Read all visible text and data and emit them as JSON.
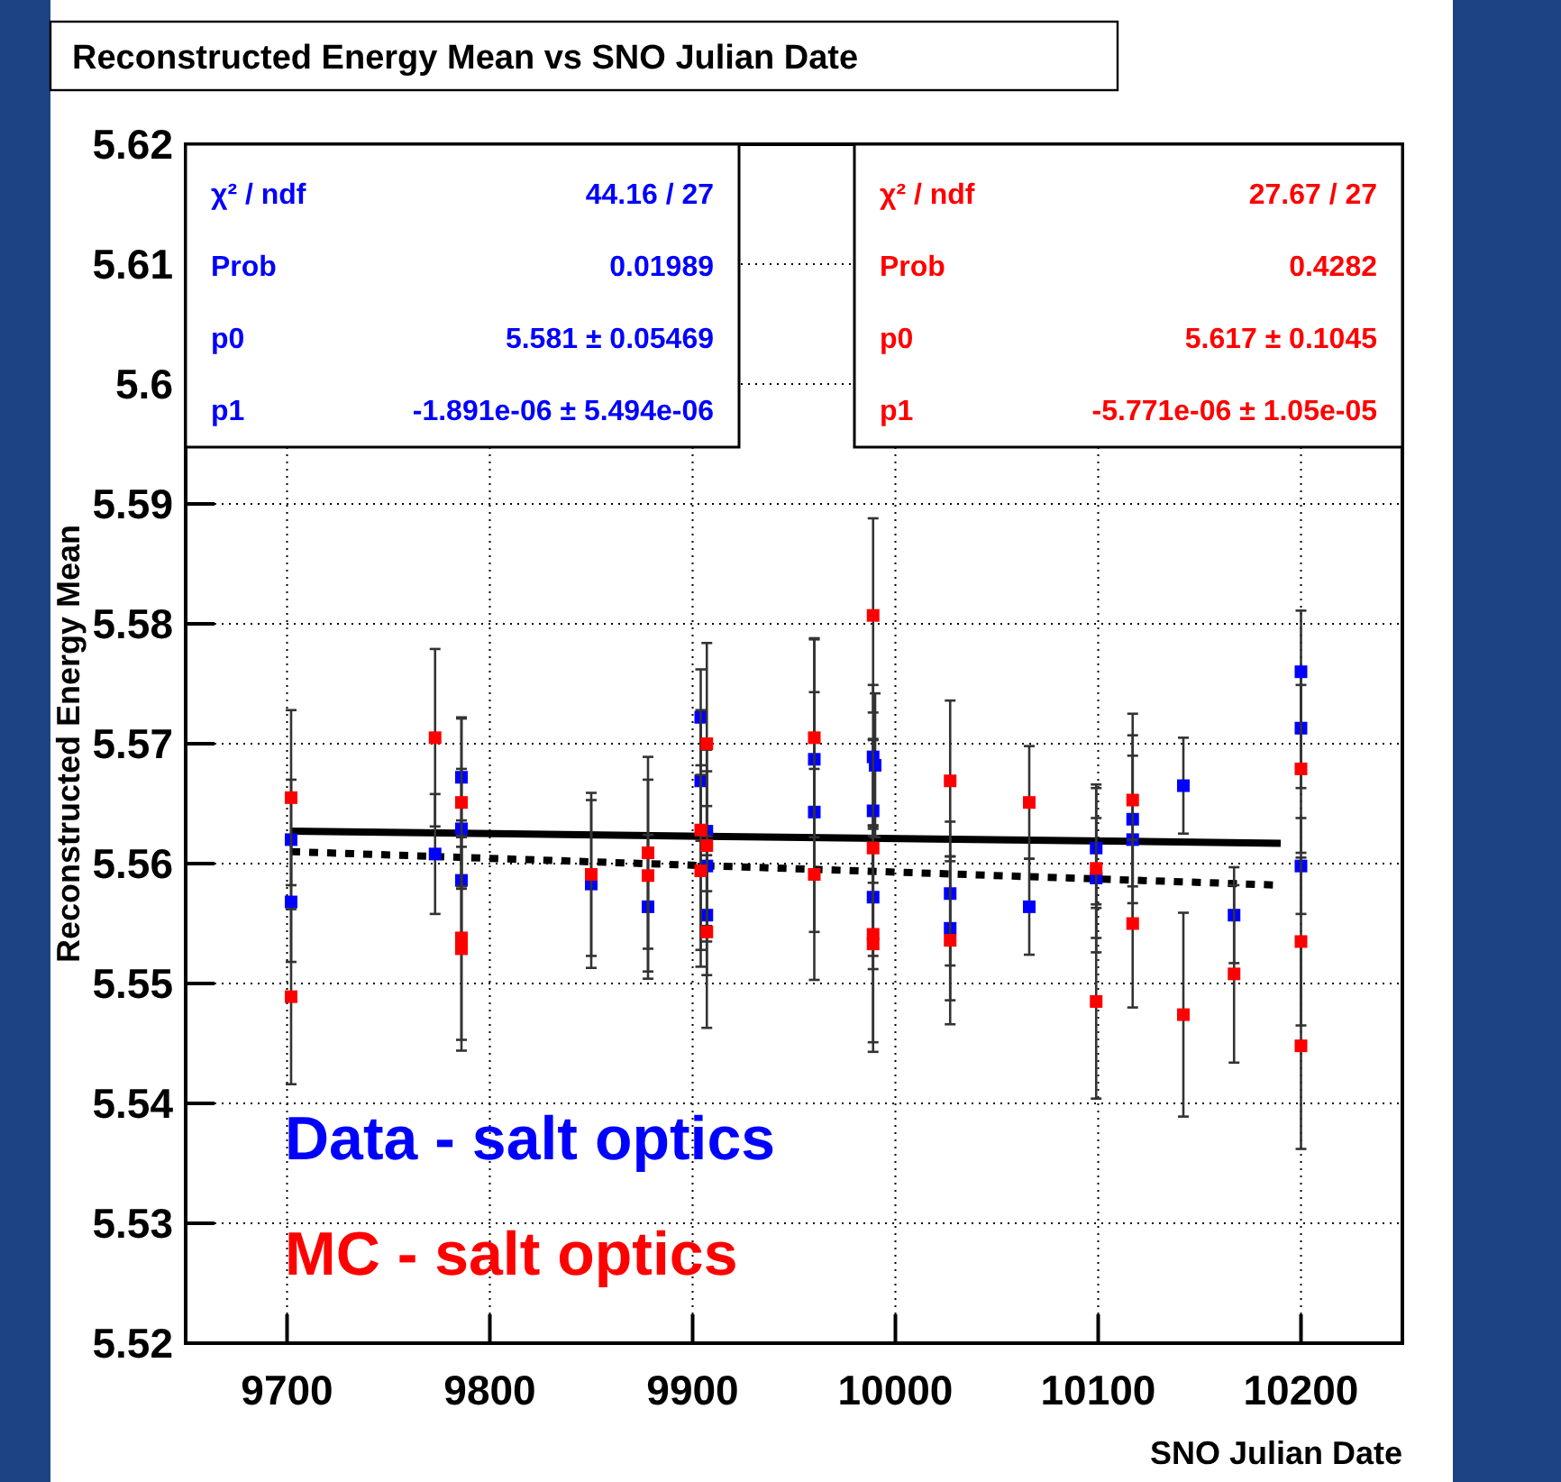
{
  "chart_data": {
    "type": "scatter",
    "title": "Reconstructed Energy Mean vs SNO Julian Date",
    "xlabel": "SNO Julian Date",
    "ylabel": "Reconstructed Energy Mean",
    "xlim": [
      9650,
      10250
    ],
    "xticks": [
      9700,
      9800,
      9900,
      10000,
      10100,
      10200
    ],
    "ylim": [
      5.52,
      5.62
    ],
    "yticks": [
      5.52,
      5.53,
      5.54,
      5.55,
      5.56,
      5.57,
      5.58,
      5.59,
      5.6,
      5.61,
      5.62
    ],
    "grid": true,
    "legend": "bottom left",
    "marker": "square",
    "annotations": [
      "χ² / ndf",
      "44.16 / 27",
      "Prob",
      "0.01989",
      "p0",
      "5.581 ± 0.05469",
      "p1",
      "-1.891e-06 ± 5.494e-06",
      "χ² / ndf",
      "27.67 / 27",
      "Prob",
      "0.4282",
      "p0",
      "5.617 ± 0.1045",
      "p1",
      "-5.771e-06 ± 1.05e-05"
    ],
    "series": [
      {
        "type": "line",
        "marker": "none",
        "color": "#000000",
        "line_style": "solid",
        "x": [
          9702,
          10190
        ],
        "values": [
          5.5627,
          5.5617
        ]
      },
      {
        "type": "line",
        "marker": "none",
        "color": "#000000",
        "line_style": "dotted",
        "x": [
          9702,
          10190
        ],
        "values": [
          5.561,
          5.5582
        ]
      },
      {
        "name": "Data - salt optics",
        "color": "#0000ff",
        "x": [
          9702,
          9702,
          9773,
          9786,
          9786,
          9786,
          9850,
          9878,
          9904,
          9904,
          9907,
          9907,
          9907,
          9960,
          9960,
          9989,
          9990,
          9989,
          9989,
          10027,
          10027,
          10066,
          10099,
          10099,
          10117,
          10117,
          10142,
          10167,
          10200,
          10200,
          10200
        ],
        "values": [
          5.562,
          5.5568,
          5.5608,
          5.5672,
          5.5629,
          5.5586,
          5.5583,
          5.5564,
          5.5722,
          5.5669,
          5.5627,
          5.5598,
          5.5557,
          5.5687,
          5.5643,
          5.5689,
          5.5682,
          5.5644,
          5.5572,
          5.5575,
          5.5546,
          5.5564,
          5.5613,
          5.5588,
          5.5637,
          5.562,
          5.5665,
          5.5557,
          5.576,
          5.5713,
          5.5598
        ],
        "errors": [
          0.005,
          0.005,
          0.005,
          0.005,
          0.005,
          0.005,
          0.007,
          0.006,
          0.004,
          0.005,
          0.005,
          0.005,
          0.005,
          0.01,
          0.01,
          0.006,
          0.006,
          0.006,
          0.006,
          0.006,
          0.006,
          0.004,
          0.005,
          0.005,
          0.007,
          0.007,
          0.004,
          0.004,
          0.0051,
          0.005,
          0.004
        ]
      },
      {
        "name": "MC - salt optics",
        "color": "#ff0000",
        "x": [
          9702,
          9702,
          9773,
          9786,
          9786,
          9786,
          9850,
          9878,
          9878,
          9904,
          9904,
          9907,
          9907,
          9907,
          9960,
          9960,
          9989,
          9989,
          9989,
          9989,
          10027,
          10027,
          10066,
          10099,
          10099,
          10117,
          10117,
          10142,
          10167,
          10200,
          10200,
          10200
        ],
        "values": [
          5.5655,
          5.5489,
          5.5705,
          5.5651,
          5.5538,
          5.5529,
          5.5591,
          5.5609,
          5.559,
          5.5628,
          5.5594,
          5.57,
          5.5615,
          5.5543,
          5.5705,
          5.5591,
          5.5807,
          5.5613,
          5.5541,
          5.5533,
          5.5669,
          5.5536,
          5.5651,
          5.5596,
          5.5485,
          5.5653,
          5.555,
          5.5474,
          5.5508,
          5.5679,
          5.5535,
          5.5448
        ],
        "errors": [
          0.0073,
          0.0073,
          0.0074,
          0.007,
          0.0085,
          0.0085,
          0.0068,
          0.008,
          0.008,
          0.01,
          0.008,
          0.0084,
          0.008,
          0.008,
          0.0083,
          0.0088,
          0.0081,
          0.009,
          0.009,
          0.009,
          0.0067,
          0.007,
          0.0047,
          0.007,
          0.0081,
          0.0072,
          0.007,
          0.0085,
          0.0074,
          0.007,
          0.007,
          0.0086
        ]
      }
    ]
  }
}
